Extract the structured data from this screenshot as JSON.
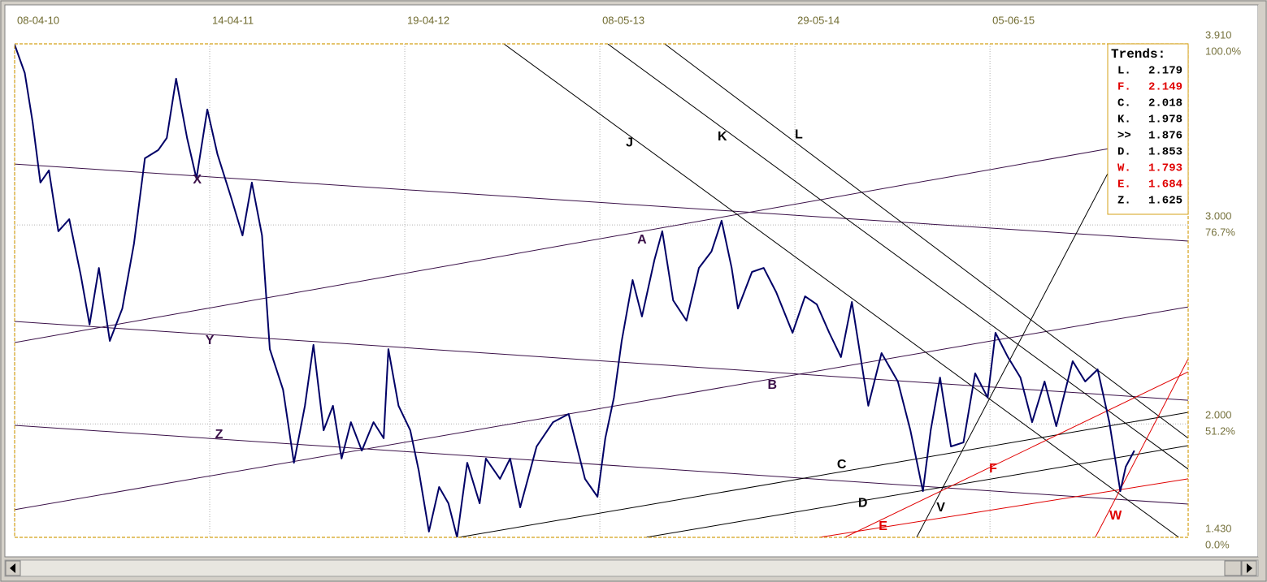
{
  "chart_data": {
    "type": "line",
    "xlim": [
      0,
      1504
    ],
    "xticks": [
      {
        "value": 0,
        "label": "08-04-10"
      },
      {
        "value": 250,
        "label": "14-04-11"
      },
      {
        "value": 500,
        "label": "19-04-12"
      },
      {
        "value": 750,
        "label": "08-05-13"
      },
      {
        "value": 1000,
        "label": "29-05-14"
      },
      {
        "value": 1250,
        "label": "05-06-15"
      }
    ],
    "ylim": [
      1.43,
      3.91
    ],
    "yticks": [
      {
        "value": 1.43,
        "label": "1.430"
      },
      {
        "value": 2.0,
        "label": "2.000"
      },
      {
        "value": 3.0,
        "label": "3.000"
      },
      {
        "value": 3.91,
        "label": "3.910"
      }
    ],
    "ytick_percent_labels": [
      "0.0%",
      "51.2%",
      "76.7%",
      "100.0%"
    ],
    "grid": true,
    "series": [
      {
        "color": "#000066",
        "x": [
          0,
          13,
          23,
          33,
          44,
          56,
          70,
          85,
          96,
          108,
          122,
          138,
          153,
          167,
          184,
          195,
          207,
          221,
          233,
          247,
          260,
          278,
          292,
          304,
          317,
          327,
          344,
          358,
          372,
          383,
          396,
          408,
          419,
          431,
          445,
          460,
          473,
          479,
          492,
          507,
          518,
          531,
          544,
          556,
          567,
          580,
          596,
          604,
          622,
          635,
          648,
          669,
          690,
          710,
          731,
          747,
          757,
          768,
          778,
          792,
          804,
          820,
          830,
          844,
          861,
          877,
          893,
          906,
          919,
          927,
          945,
          960,
          976,
          997,
          1013,
          1028,
          1044,
          1059,
          1073,
          1094,
          1111,
          1132,
          1148,
          1164,
          1174,
          1186,
          1200,
          1216,
          1231,
          1247,
          1257,
          1273,
          1289,
          1304,
          1320,
          1335,
          1356,
          1372,
          1388,
          1403,
          1417,
          1424,
          1435
        ],
        "values": [
          3.906,
          3.763,
          3.518,
          3.213,
          3.274,
          2.968,
          3.029,
          2.743,
          2.499,
          2.784,
          2.417,
          2.58,
          2.907,
          3.335,
          3.376,
          3.437,
          3.735,
          3.437,
          3.233,
          3.58,
          3.355,
          3.131,
          2.947,
          3.213,
          2.947,
          2.376,
          2.172,
          1.805,
          2.091,
          2.397,
          1.968,
          2.091,
          1.826,
          2.009,
          1.866,
          2.009,
          1.928,
          2.376,
          2.091,
          1.968,
          1.765,
          1.459,
          1.683,
          1.601,
          1.43,
          1.805,
          1.601,
          1.826,
          1.724,
          1.826,
          1.581,
          1.887,
          2.009,
          2.05,
          1.724,
          1.634,
          1.928,
          2.132,
          2.417,
          2.723,
          2.54,
          2.825,
          2.968,
          2.621,
          2.519,
          2.784,
          2.866,
          3.021,
          2.784,
          2.58,
          2.764,
          2.784,
          2.662,
          2.458,
          2.641,
          2.601,
          2.458,
          2.336,
          2.613,
          2.091,
          2.356,
          2.213,
          1.968,
          1.662,
          1.968,
          2.233,
          1.887,
          1.907,
          2.254,
          2.132,
          2.458,
          2.336,
          2.233,
          2.009,
          2.213,
          1.989,
          2.315,
          2.213,
          2.274,
          2.009,
          1.662,
          1.785,
          1.866
        ]
      }
    ],
    "trendlines": [
      {
        "label": "X",
        "color": "#3a1048",
        "start": [
          0,
          3.306
        ],
        "end": [
          1504,
          2.919
        ],
        "label_at": [
          234,
          3.225
        ]
      },
      {
        "label": "Y",
        "color": "#3a1048",
        "start": [
          0,
          2.515
        ],
        "end": [
          1504,
          2.119
        ],
        "label_at": [
          250,
          2.417
        ]
      },
      {
        "label": "Z",
        "color": "#3a1048",
        "start": [
          0,
          1.993
        ],
        "end": [
          1504,
          1.597
        ],
        "label_at": [
          262,
          1.944
        ]
      },
      {
        "label": "A",
        "color": "#3a1048",
        "start": [
          0,
          2.409
        ],
        "end": [
          1403,
          3.384
        ],
        "label_at": [
          804,
          2.923
        ]
      },
      {
        "label": "B",
        "color": "#3a1048",
        "start": [
          0,
          1.569
        ],
        "end": [
          1504,
          2.588
        ],
        "label_at": [
          971,
          2.193
        ]
      },
      {
        "label": "C",
        "color": "#000000",
        "start": [
          569,
          1.43
        ],
        "end": [
          1504,
          2.058
        ],
        "label_at": [
          1060,
          1.793
        ]
      },
      {
        "label": "D",
        "color": "#000000",
        "start": [
          809,
          1.43
        ],
        "end": [
          1504,
          1.891
        ],
        "label_at": [
          1087,
          1.601
        ]
      },
      {
        "label": "J",
        "color": "#000000",
        "start": [
          627,
          3.91
        ],
        "end": [
          1492,
          1.43
        ],
        "label_at": [
          788,
          3.412
        ]
      },
      {
        "label": "K",
        "color": "#000000",
        "start": [
          760,
          3.91
        ],
        "end": [
          1504,
          1.773
        ],
        "label_at": [
          907,
          3.441
        ]
      },
      {
        "label": "L",
        "color": "#000000",
        "start": [
          833,
          3.91
        ],
        "end": [
          1504,
          1.928
        ],
        "label_at": [
          1005,
          3.453
        ]
      },
      {
        "label": "V",
        "color": "#000000",
        "start": [
          1156,
          1.43
        ],
        "end": [
          1403,
          3.274
        ],
        "label_at": [
          1187,
          1.577
        ]
      },
      {
        "label": "E",
        "color": "#e00000",
        "start": [
          1031,
          1.43
        ],
        "end": [
          1504,
          1.724
        ],
        "label_at": [
          1113,
          1.483
        ]
      },
      {
        "label": "F",
        "color": "#e00000",
        "start": [
          1064,
          1.43
        ],
        "end": [
          1504,
          2.262
        ],
        "label_at": [
          1254,
          1.773
        ]
      },
      {
        "label": "W",
        "color": "#e00000",
        "start": [
          1385,
          1.43
        ],
        "end": [
          1504,
          2.327
        ],
        "label_at": [
          1411,
          1.536
        ]
      }
    ],
    "trends_box": {
      "title": "Trends:",
      "entries": [
        {
          "label": "L.",
          "value": 2.179,
          "color": "#000000"
        },
        {
          "label": "F.",
          "value": 2.149,
          "color": "#e00000"
        },
        {
          "label": "C.",
          "value": 2.018,
          "color": "#000000"
        },
        {
          "label": "K.",
          "value": 1.978,
          "color": "#000000"
        },
        {
          "label": ">>",
          "value": 1.876,
          "color": "#000000"
        },
        {
          "label": "D.",
          "value": 1.853,
          "color": "#000000"
        },
        {
          "label": "W.",
          "value": 1.793,
          "color": "#e00000"
        },
        {
          "label": "E.",
          "value": 1.684,
          "color": "#e00000"
        },
        {
          "label": "Z.",
          "value": 1.625,
          "color": "#000000"
        }
      ]
    }
  }
}
